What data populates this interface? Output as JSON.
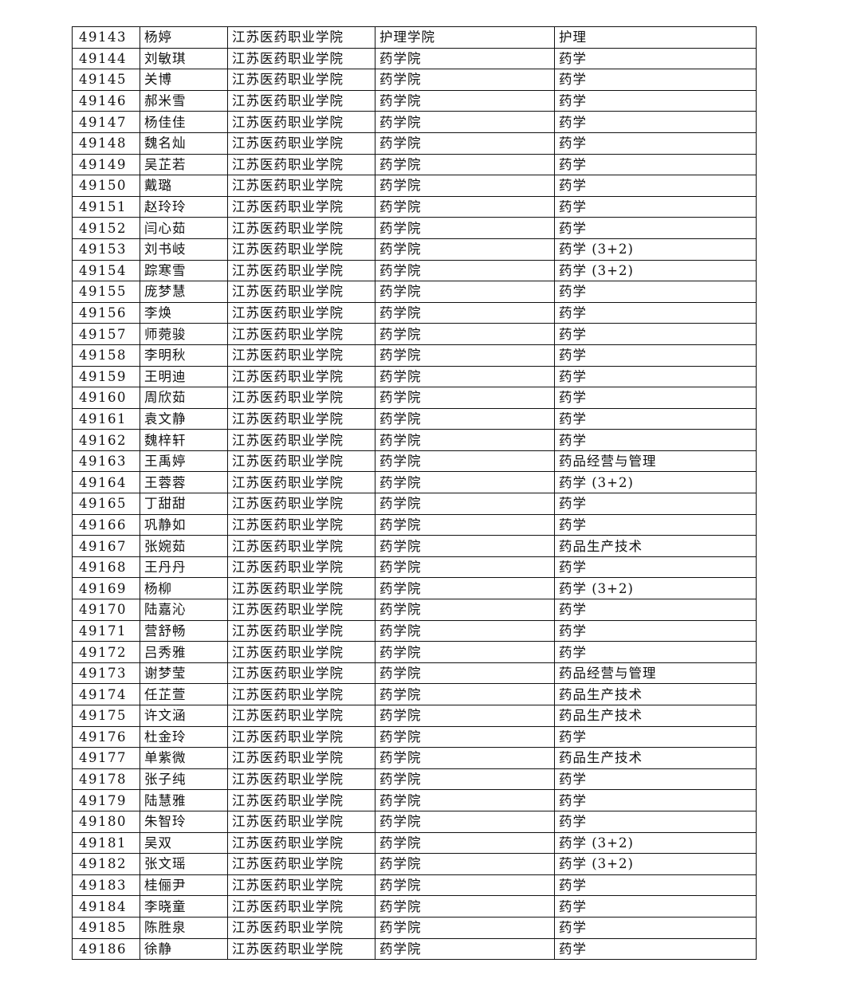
{
  "table": {
    "rows": [
      [
        "49143",
        "杨婷",
        "江苏医药职业学院",
        "护理学院",
        "护理"
      ],
      [
        "49144",
        "刘敏琪",
        "江苏医药职业学院",
        "药学院",
        "药学"
      ],
      [
        "49145",
        "关博",
        "江苏医药职业学院",
        "药学院",
        "药学"
      ],
      [
        "49146",
        "郝米雪",
        "江苏医药职业学院",
        "药学院",
        "药学"
      ],
      [
        "49147",
        "杨佳佳",
        "江苏医药职业学院",
        "药学院",
        "药学"
      ],
      [
        "49148",
        "魏名灿",
        "江苏医药职业学院",
        "药学院",
        "药学"
      ],
      [
        "49149",
        "吴芷若",
        "江苏医药职业学院",
        "药学院",
        "药学"
      ],
      [
        "49150",
        "戴璐",
        "江苏医药职业学院",
        "药学院",
        "药学"
      ],
      [
        "49151",
        "赵玲玲",
        "江苏医药职业学院",
        "药学院",
        "药学"
      ],
      [
        "49152",
        "闫心茹",
        "江苏医药职业学院",
        "药学院",
        "药学"
      ],
      [
        "49153",
        "刘书岐",
        "江苏医药职业学院",
        "药学院",
        "药学 (3+2)"
      ],
      [
        "49154",
        "踪寒雪",
        "江苏医药职业学院",
        "药学院",
        "药学 (3+2)"
      ],
      [
        "49155",
        "庞梦慧",
        "江苏医药职业学院",
        "药学院",
        "药学"
      ],
      [
        "49156",
        "李焕",
        "江苏医药职业学院",
        "药学院",
        "药学"
      ],
      [
        "49157",
        "师菀骏",
        "江苏医药职业学院",
        "药学院",
        "药学"
      ],
      [
        "49158",
        "李明秋",
        "江苏医药职业学院",
        "药学院",
        "药学"
      ],
      [
        "49159",
        "王明迪",
        "江苏医药职业学院",
        "药学院",
        "药学"
      ],
      [
        "49160",
        "周欣茹",
        "江苏医药职业学院",
        "药学院",
        "药学"
      ],
      [
        "49161",
        "袁文静",
        "江苏医药职业学院",
        "药学院",
        "药学"
      ],
      [
        "49162",
        "魏梓轩",
        "江苏医药职业学院",
        "药学院",
        "药学"
      ],
      [
        "49163",
        "王禹婷",
        "江苏医药职业学院",
        "药学院",
        "药品经营与管理"
      ],
      [
        "49164",
        "王蓉蓉",
        "江苏医药职业学院",
        "药学院",
        "药学 (3+2)"
      ],
      [
        "49165",
        "丁甜甜",
        "江苏医药职业学院",
        "药学院",
        "药学"
      ],
      [
        "49166",
        "巩静如",
        "江苏医药职业学院",
        "药学院",
        "药学"
      ],
      [
        "49167",
        "张婉茹",
        "江苏医药职业学院",
        "药学院",
        "药品生产技术"
      ],
      [
        "49168",
        "王丹丹",
        "江苏医药职业学院",
        "药学院",
        "药学"
      ],
      [
        "49169",
        "杨柳",
        "江苏医药职业学院",
        "药学院",
        "药学 (3+2)"
      ],
      [
        "49170",
        "陆嘉沁",
        "江苏医药职业学院",
        "药学院",
        "药学"
      ],
      [
        "49171",
        "营舒畅",
        "江苏医药职业学院",
        "药学院",
        "药学"
      ],
      [
        "49172",
        "吕秀雅",
        "江苏医药职业学院",
        "药学院",
        "药学"
      ],
      [
        "49173",
        "谢梦莹",
        "江苏医药职业学院",
        "药学院",
        "药品经营与管理"
      ],
      [
        "49174",
        "任芷萱",
        "江苏医药职业学院",
        "药学院",
        "药品生产技术"
      ],
      [
        "49175",
        "许文涵",
        "江苏医药职业学院",
        "药学院",
        "药品生产技术"
      ],
      [
        "49176",
        "杜金玲",
        "江苏医药职业学院",
        "药学院",
        "药学"
      ],
      [
        "49177",
        "单紫微",
        "江苏医药职业学院",
        "药学院",
        "药品生产技术"
      ],
      [
        "49178",
        "张子纯",
        "江苏医药职业学院",
        "药学院",
        "药学"
      ],
      [
        "49179",
        "陆慧雅",
        "江苏医药职业学院",
        "药学院",
        "药学"
      ],
      [
        "49180",
        "朱智玲",
        "江苏医药职业学院",
        "药学院",
        "药学"
      ],
      [
        "49181",
        "吴双",
        "江苏医药职业学院",
        "药学院",
        "药学 (3+2)"
      ],
      [
        "49182",
        "张文瑶",
        "江苏医药职业学院",
        "药学院",
        "药学 (3+2)"
      ],
      [
        "49183",
        "桂俪尹",
        "江苏医药职业学院",
        "药学院",
        "药学"
      ],
      [
        "49184",
        "李晓童",
        "江苏医药职业学院",
        "药学院",
        "药学"
      ],
      [
        "49185",
        "陈胜泉",
        "江苏医药职业学院",
        "药学院",
        "药学"
      ],
      [
        "49186",
        "徐静",
        "江苏医药职业学院",
        "药学院",
        "药学"
      ]
    ]
  }
}
